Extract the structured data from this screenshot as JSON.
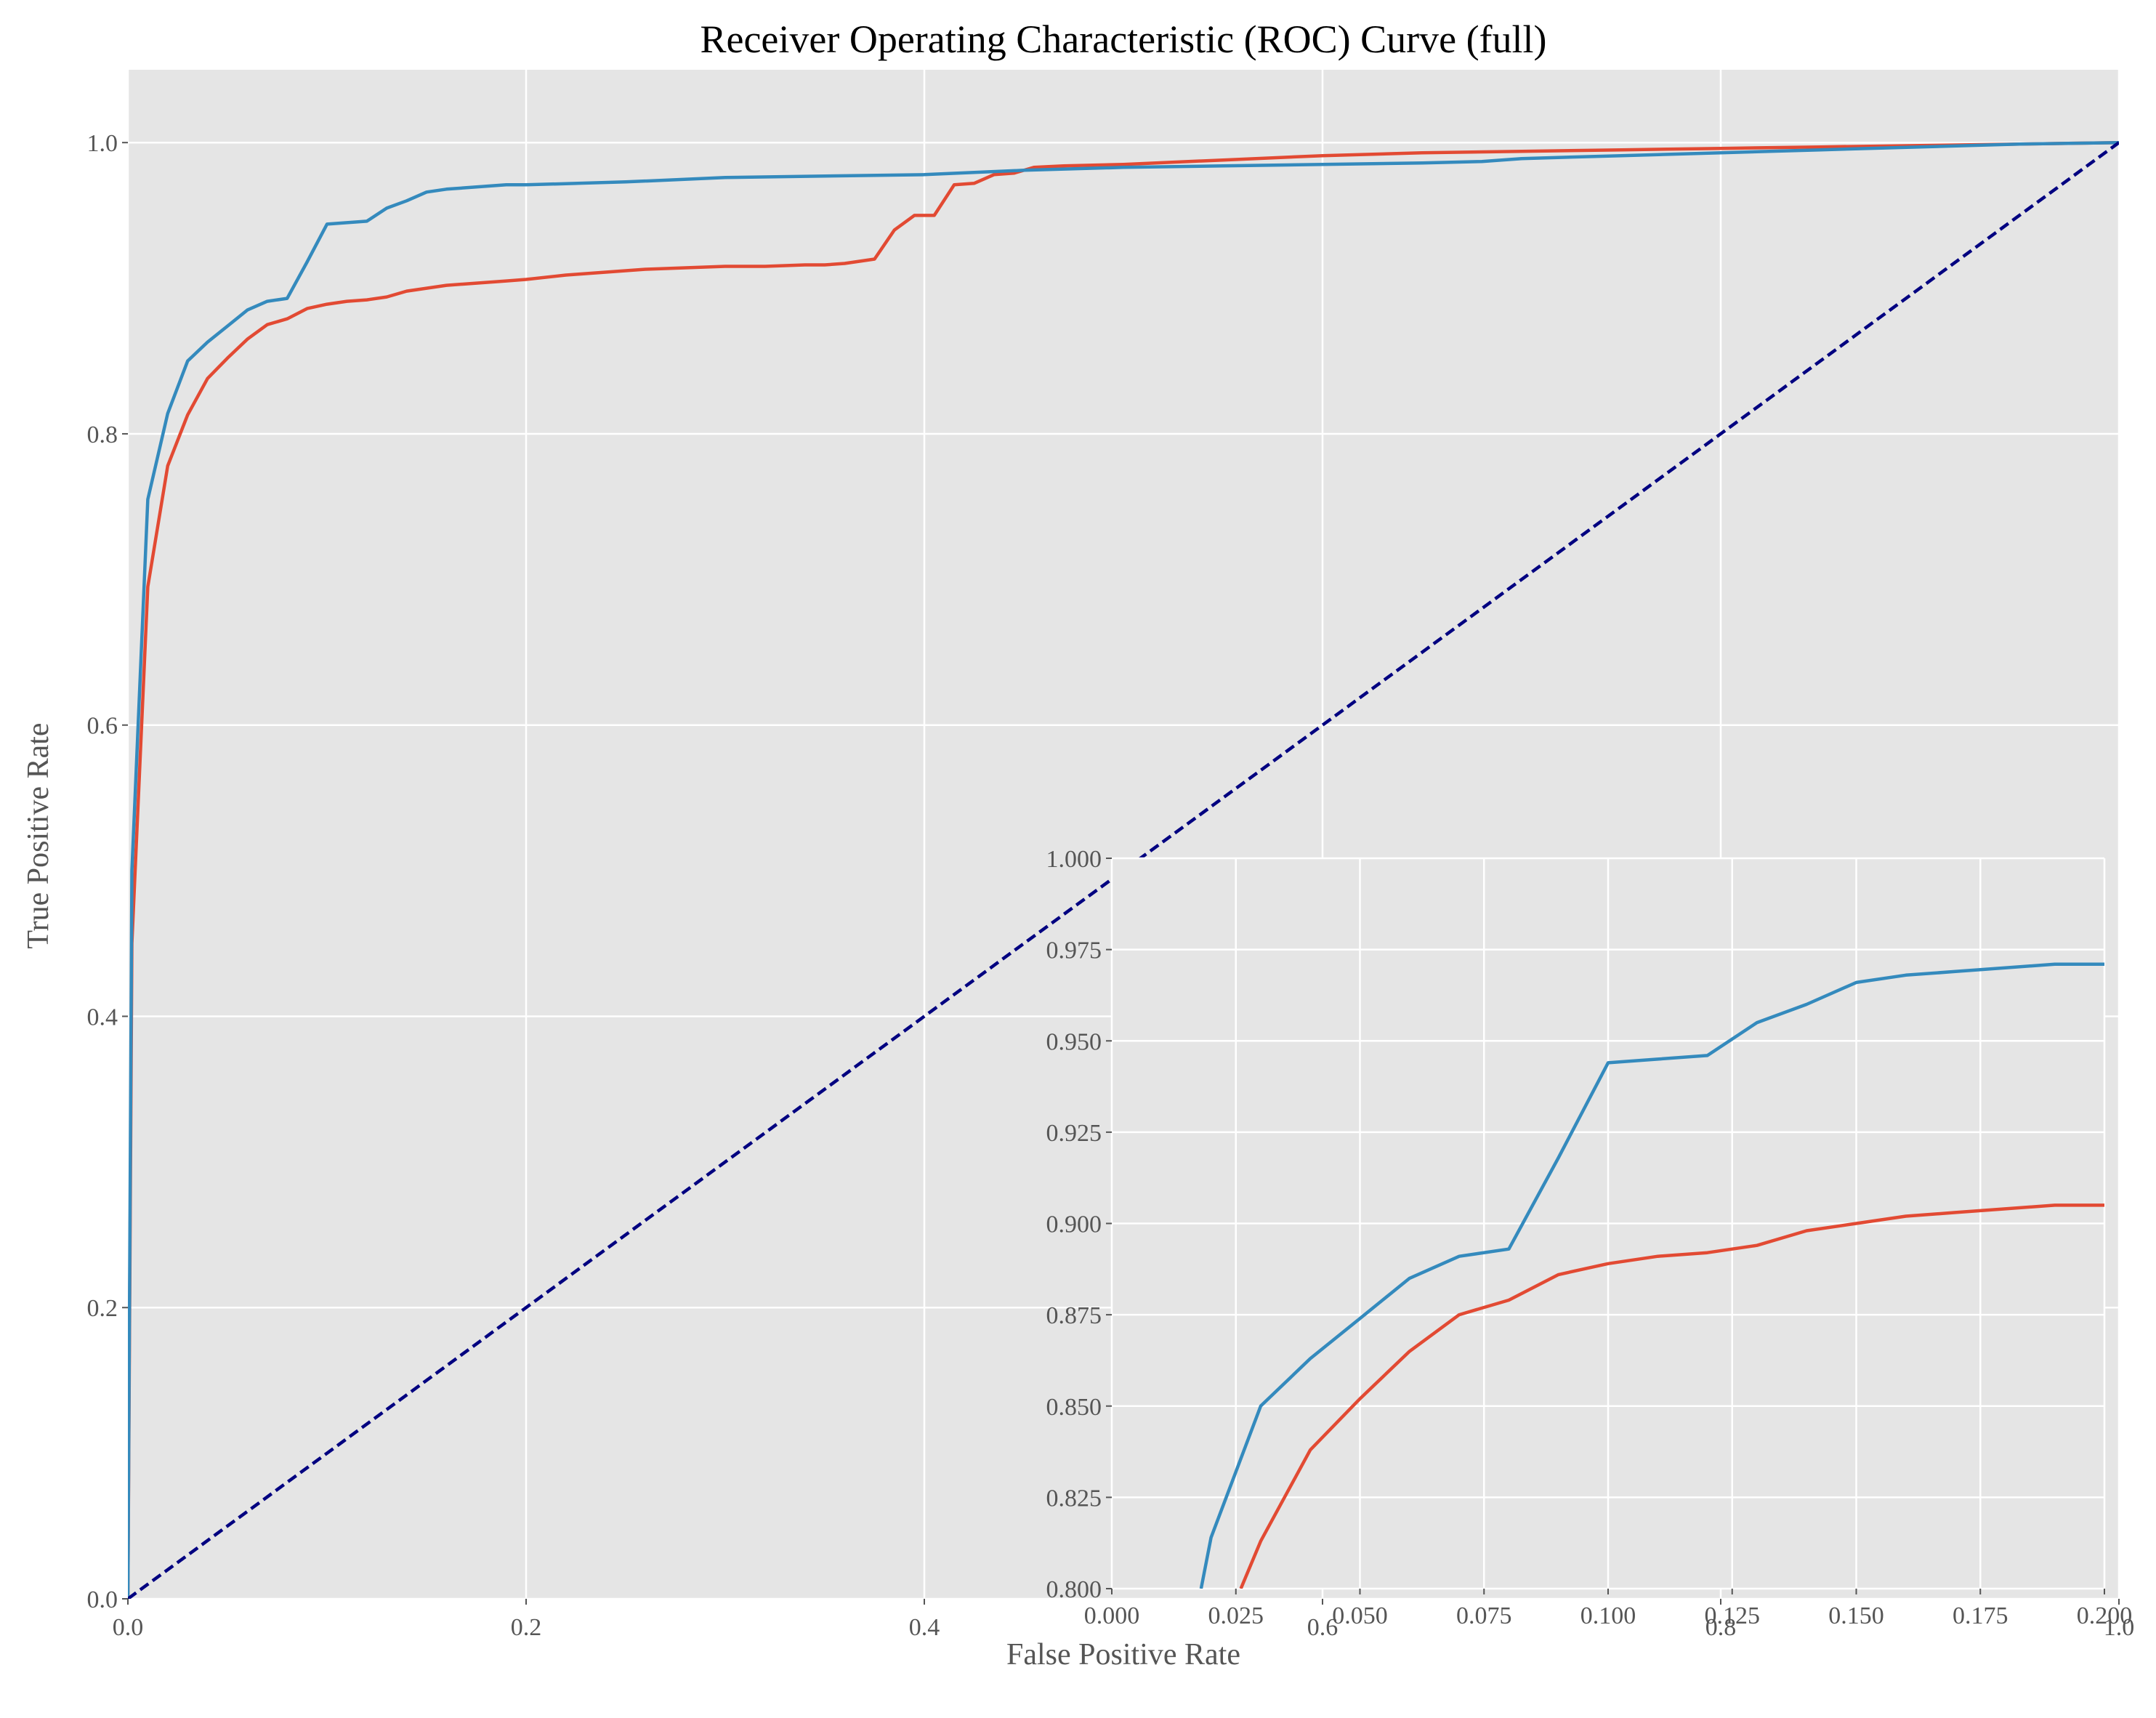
{
  "chart_data": [
    {
      "type": "line",
      "title": "Receiver Operating Characteristic (ROC) Curve (full)",
      "xlabel": "False Positive Rate",
      "ylabel": "True Positive Rate",
      "xlim": [
        0,
        1
      ],
      "ylim": [
        0,
        1.05
      ],
      "xticks": [
        "0.0",
        "0.2",
        "0.4",
        "0.6",
        "0.8",
        "1.0"
      ],
      "yticks": [
        "0.0",
        "0.2",
        "0.4",
        "0.6",
        "0.8",
        "1.0"
      ],
      "grid": true,
      "legend": "none",
      "series": [
        {
          "color": "#E24A33",
          "x": [
            0,
            0.002,
            0.01,
            0.02,
            0.03,
            0.04,
            0.05,
            0.06,
            0.07,
            0.08,
            0.09,
            0.1,
            0.11,
            0.12,
            0.13,
            0.14,
            0.15,
            0.16,
            0.17,
            0.18,
            0.19,
            0.2,
            0.22,
            0.24,
            0.26,
            0.28,
            0.3,
            0.32,
            0.34,
            0.35,
            0.36,
            0.375,
            0.385,
            0.395,
            0.405,
            0.415,
            0.425,
            0.435,
            0.445,
            0.455,
            0.47,
            0.5,
            0.55,
            0.6,
            0.65,
            0.7,
            0.75,
            0.8,
            0.85,
            0.9,
            0.95,
            1.0
          ],
          "y": [
            0,
            0.45,
            0.695,
            0.778,
            0.813,
            0.838,
            0.852,
            0.865,
            0.875,
            0.879,
            0.886,
            0.889,
            0.891,
            0.892,
            0.894,
            0.898,
            0.9,
            0.902,
            0.903,
            0.904,
            0.905,
            0.906,
            0.909,
            0.911,
            0.913,
            0.914,
            0.915,
            0.915,
            0.916,
            0.916,
            0.917,
            0.92,
            0.94,
            0.95,
            0.95,
            0.971,
            0.972,
            0.978,
            0.979,
            0.983,
            0.984,
            0.985,
            0.988,
            0.991,
            0.993,
            0.994,
            0.995,
            0.996,
            0.997,
            0.998,
            0.999,
            1.0
          ]
        },
        {
          "color": "#348ABD",
          "x": [
            0,
            0.002,
            0.01,
            0.02,
            0.03,
            0.04,
            0.05,
            0.06,
            0.07,
            0.08,
            0.09,
            0.1,
            0.11,
            0.12,
            0.13,
            0.14,
            0.15,
            0.16,
            0.17,
            0.18,
            0.19,
            0.2,
            0.25,
            0.3,
            0.35,
            0.4,
            0.45,
            0.5,
            0.55,
            0.6,
            0.65,
            0.68,
            0.7,
            0.75,
            0.8,
            0.85,
            0.9,
            0.95,
            1.0
          ],
          "y": [
            0,
            0.5,
            0.755,
            0.814,
            0.85,
            0.863,
            0.874,
            0.885,
            0.891,
            0.893,
            0.918,
            0.944,
            0.945,
            0.946,
            0.955,
            0.96,
            0.966,
            0.968,
            0.969,
            0.97,
            0.971,
            0.971,
            0.973,
            0.976,
            0.977,
            0.978,
            0.981,
            0.983,
            0.984,
            0.985,
            0.986,
            0.987,
            0.989,
            0.991,
            0.993,
            0.995,
            0.997,
            0.999,
            1.0
          ]
        },
        {
          "color": "#000080",
          "style": "dashed",
          "x": [
            0,
            1
          ],
          "y": [
            0,
            1
          ]
        }
      ]
    },
    {
      "type": "line",
      "title": "",
      "xlabel": "",
      "ylabel": "",
      "xlim": [
        0,
        0.2
      ],
      "ylim": [
        0.8,
        1.0
      ],
      "xticks": [
        "0.000",
        "0.025",
        "0.050",
        "0.075",
        "0.100",
        "0.125",
        "0.150",
        "0.175",
        "0.200"
      ],
      "yticks": [
        "0.800",
        "0.825",
        "0.850",
        "0.875",
        "0.900",
        "0.925",
        "0.950",
        "0.975",
        "1.000"
      ],
      "grid": true,
      "legend": "none",
      "series": [
        {
          "color": "#E24A33",
          "x": [
            0.026,
            0.03,
            0.04,
            0.05,
            0.06,
            0.07,
            0.08,
            0.09,
            0.1,
            0.11,
            0.12,
            0.13,
            0.14,
            0.15,
            0.16,
            0.17,
            0.18,
            0.19,
            0.2
          ],
          "y": [
            0.8,
            0.813,
            0.838,
            0.852,
            0.865,
            0.875,
            0.879,
            0.886,
            0.889,
            0.891,
            0.892,
            0.894,
            0.898,
            0.9,
            0.902,
            0.903,
            0.904,
            0.905,
            0.905
          ]
        },
        {
          "color": "#348ABD",
          "x": [
            0.018,
            0.02,
            0.03,
            0.04,
            0.05,
            0.06,
            0.07,
            0.08,
            0.09,
            0.1,
            0.11,
            0.12,
            0.13,
            0.14,
            0.15,
            0.16,
            0.17,
            0.18,
            0.19,
            0.2
          ],
          "y": [
            0.8,
            0.814,
            0.85,
            0.863,
            0.874,
            0.885,
            0.891,
            0.893,
            0.918,
            0.944,
            0.945,
            0.946,
            0.955,
            0.96,
            0.966,
            0.968,
            0.969,
            0.97,
            0.971,
            0.971
          ]
        }
      ]
    }
  ]
}
